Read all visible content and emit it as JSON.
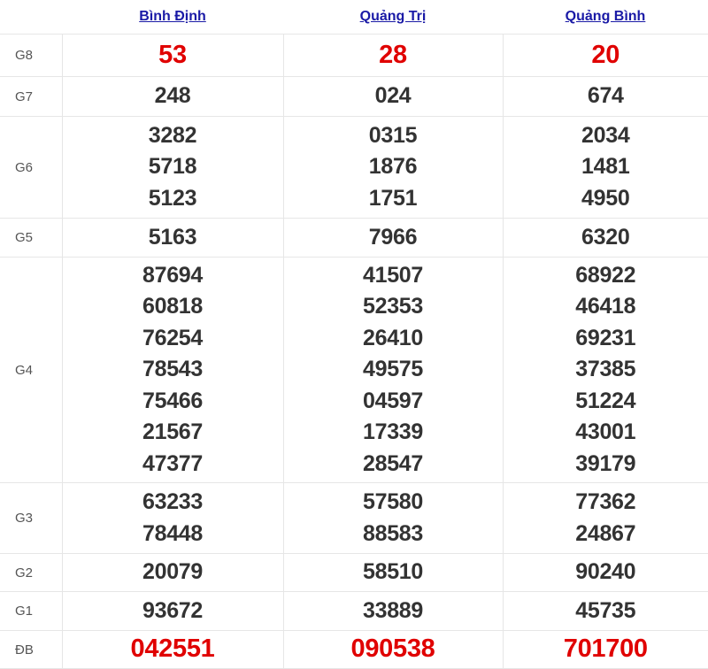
{
  "provinces": [
    "Bình Định",
    "Quảng Trị",
    "Quảng Bình"
  ],
  "colors": {
    "highlight": "#e00000",
    "link": "#1a1aa6",
    "text": "#333333"
  },
  "prizes": [
    {
      "label": "G8",
      "highlight": true,
      "values": [
        [
          "53"
        ],
        [
          "28"
        ],
        [
          "20"
        ]
      ]
    },
    {
      "label": "G7",
      "highlight": false,
      "values": [
        [
          "248"
        ],
        [
          "024"
        ],
        [
          "674"
        ]
      ]
    },
    {
      "label": "G6",
      "highlight": false,
      "values": [
        [
          "3282",
          "5718",
          "5123"
        ],
        [
          "0315",
          "1876",
          "1751"
        ],
        [
          "2034",
          "1481",
          "4950"
        ]
      ]
    },
    {
      "label": "G5",
      "highlight": false,
      "values": [
        [
          "5163"
        ],
        [
          "7966"
        ],
        [
          "6320"
        ]
      ]
    },
    {
      "label": "G4",
      "highlight": false,
      "values": [
        [
          "87694",
          "60818",
          "76254",
          "78543",
          "75466",
          "21567",
          "47377"
        ],
        [
          "41507",
          "52353",
          "26410",
          "49575",
          "04597",
          "17339",
          "28547"
        ],
        [
          "68922",
          "46418",
          "69231",
          "37385",
          "51224",
          "43001",
          "39179"
        ]
      ]
    },
    {
      "label": "G3",
      "highlight": false,
      "values": [
        [
          "63233",
          "78448"
        ],
        [
          "57580",
          "88583"
        ],
        [
          "77362",
          "24867"
        ]
      ]
    },
    {
      "label": "G2",
      "highlight": false,
      "values": [
        [
          "20079"
        ],
        [
          "58510"
        ],
        [
          "90240"
        ]
      ]
    },
    {
      "label": "G1",
      "highlight": false,
      "values": [
        [
          "93672"
        ],
        [
          "33889"
        ],
        [
          "45735"
        ]
      ]
    },
    {
      "label": "ĐB",
      "highlight": true,
      "values": [
        [
          "042551"
        ],
        [
          "090538"
        ],
        [
          "701700"
        ]
      ]
    }
  ]
}
